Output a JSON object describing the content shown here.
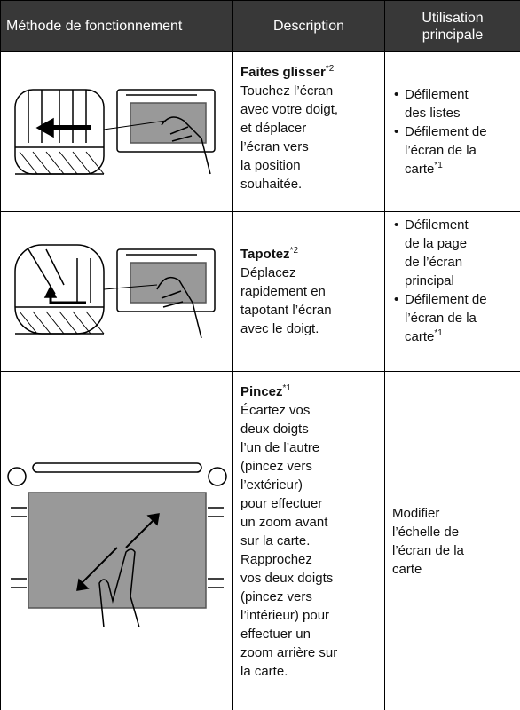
{
  "table": {
    "header": [
      "Méthode de fonctionnement",
      "Description",
      "Utilisation principale"
    ],
    "rows": [
      {
        "title": "Faites glisser",
        "note": "*2",
        "lines": [
          "Touchez l’écran",
          "avec votre doigt,",
          "et déplacer",
          "l’écran vers",
          "la position",
          "souhaitée."
        ],
        "usage": [
          {
            "lines": [
              "Défilement",
              "des listes"
            ],
            "note": null
          },
          {
            "lines": [
              "Défilement de",
              "l’écran de la",
              "carte"
            ],
            "note": "*1"
          }
        ]
      },
      {
        "title": "Tapotez",
        "note": "*2",
        "lines": [
          "Déplacez",
          "rapidement en",
          "tapotant l’écran",
          "avec le doigt."
        ],
        "usage": [
          {
            "lines": [
              "Défilement",
              "de la page",
              "de l’écran",
              "principal"
            ],
            "note": null
          },
          {
            "lines": [
              "Défilement de",
              "l’écran de la",
              "carte"
            ],
            "note": "*1"
          }
        ]
      },
      {
        "title": "Pincez",
        "note": "*1",
        "lines": [
          "Écartez vos",
          "deux doigts",
          "l’un de l’autre",
          "(pincez vers",
          "l’extérieur)",
          "pour effectuer",
          "un zoom avant",
          "sur la carte.",
          "Rapprochez",
          "vos deux doigts",
          "(pincez vers",
          "l’intérieur) pour",
          "effectuer un",
          "zoom arrière sur",
          "la carte."
        ],
        "usage_text": [
          "Modifier",
          "l’échelle de",
          "l’écran de la",
          "carte"
        ]
      }
    ]
  }
}
